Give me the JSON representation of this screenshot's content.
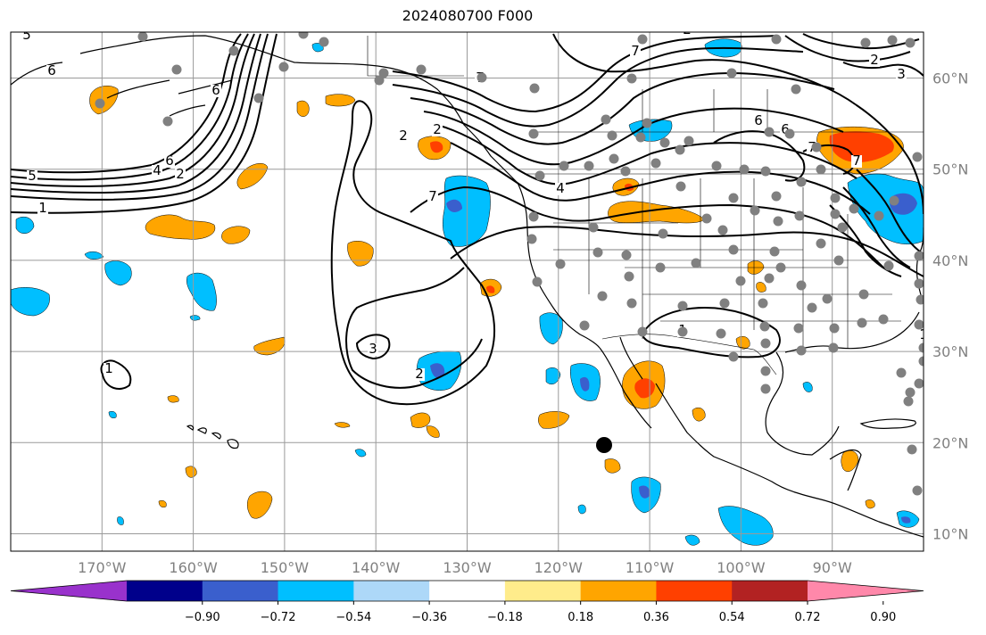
{
  "title": "2024080700 F000",
  "lat_labels": [
    {
      "label": "60°N",
      "lat": 60
    },
    {
      "label": "50°N",
      "lat": 50
    },
    {
      "label": "40°N",
      "lat": 40
    },
    {
      "label": "30°N",
      "lat": 30
    },
    {
      "label": "20°N",
      "lat": 20
    },
    {
      "label": "10°N",
      "lat": 10
    }
  ],
  "lon_labels": [
    {
      "label": "170°W",
      "lon": -170
    },
    {
      "label": "160°W",
      "lon": -160
    },
    {
      "label": "150°W",
      "lon": -150
    },
    {
      "label": "140°W",
      "lon": -140
    },
    {
      "label": "130°W",
      "lon": -130
    },
    {
      "label": "120°W",
      "lon": -120
    },
    {
      "label": "110°W",
      "lon": -110
    },
    {
      "label": "100°W",
      "lon": -100
    },
    {
      "label": "90°W",
      "lon": -90
    }
  ],
  "extent": {
    "lon_min": -180,
    "lon_max": -80,
    "lat_min": 8,
    "lat_max": 65
  },
  "colorbar": {
    "ticks": [
      "−0.90",
      "−0.72",
      "−0.54",
      "−0.36",
      "−0.18",
      "0.18",
      "0.36",
      "0.54",
      "0.72",
      "0.90"
    ],
    "colors": [
      "#9932cc",
      "#00008b",
      "#3a5fcd",
      "#00bfff",
      "#add8f8",
      "#ffffff",
      "#ffec8b",
      "#ffa500",
      "#ff4000",
      "#b22222",
      "#ff88aa"
    ]
  },
  "contour_labels": [
    "5",
    "6",
    "6",
    "5",
    "4",
    "6",
    "2",
    "1",
    "2",
    "7",
    "7",
    "6",
    "7",
    "4",
    "2",
    "3",
    "2",
    "1",
    "1",
    "7",
    "2",
    "3",
    "6",
    "7",
    "1",
    "2"
  ],
  "station_marker_color": "#808080",
  "feature_marker_color": "#000000"
}
